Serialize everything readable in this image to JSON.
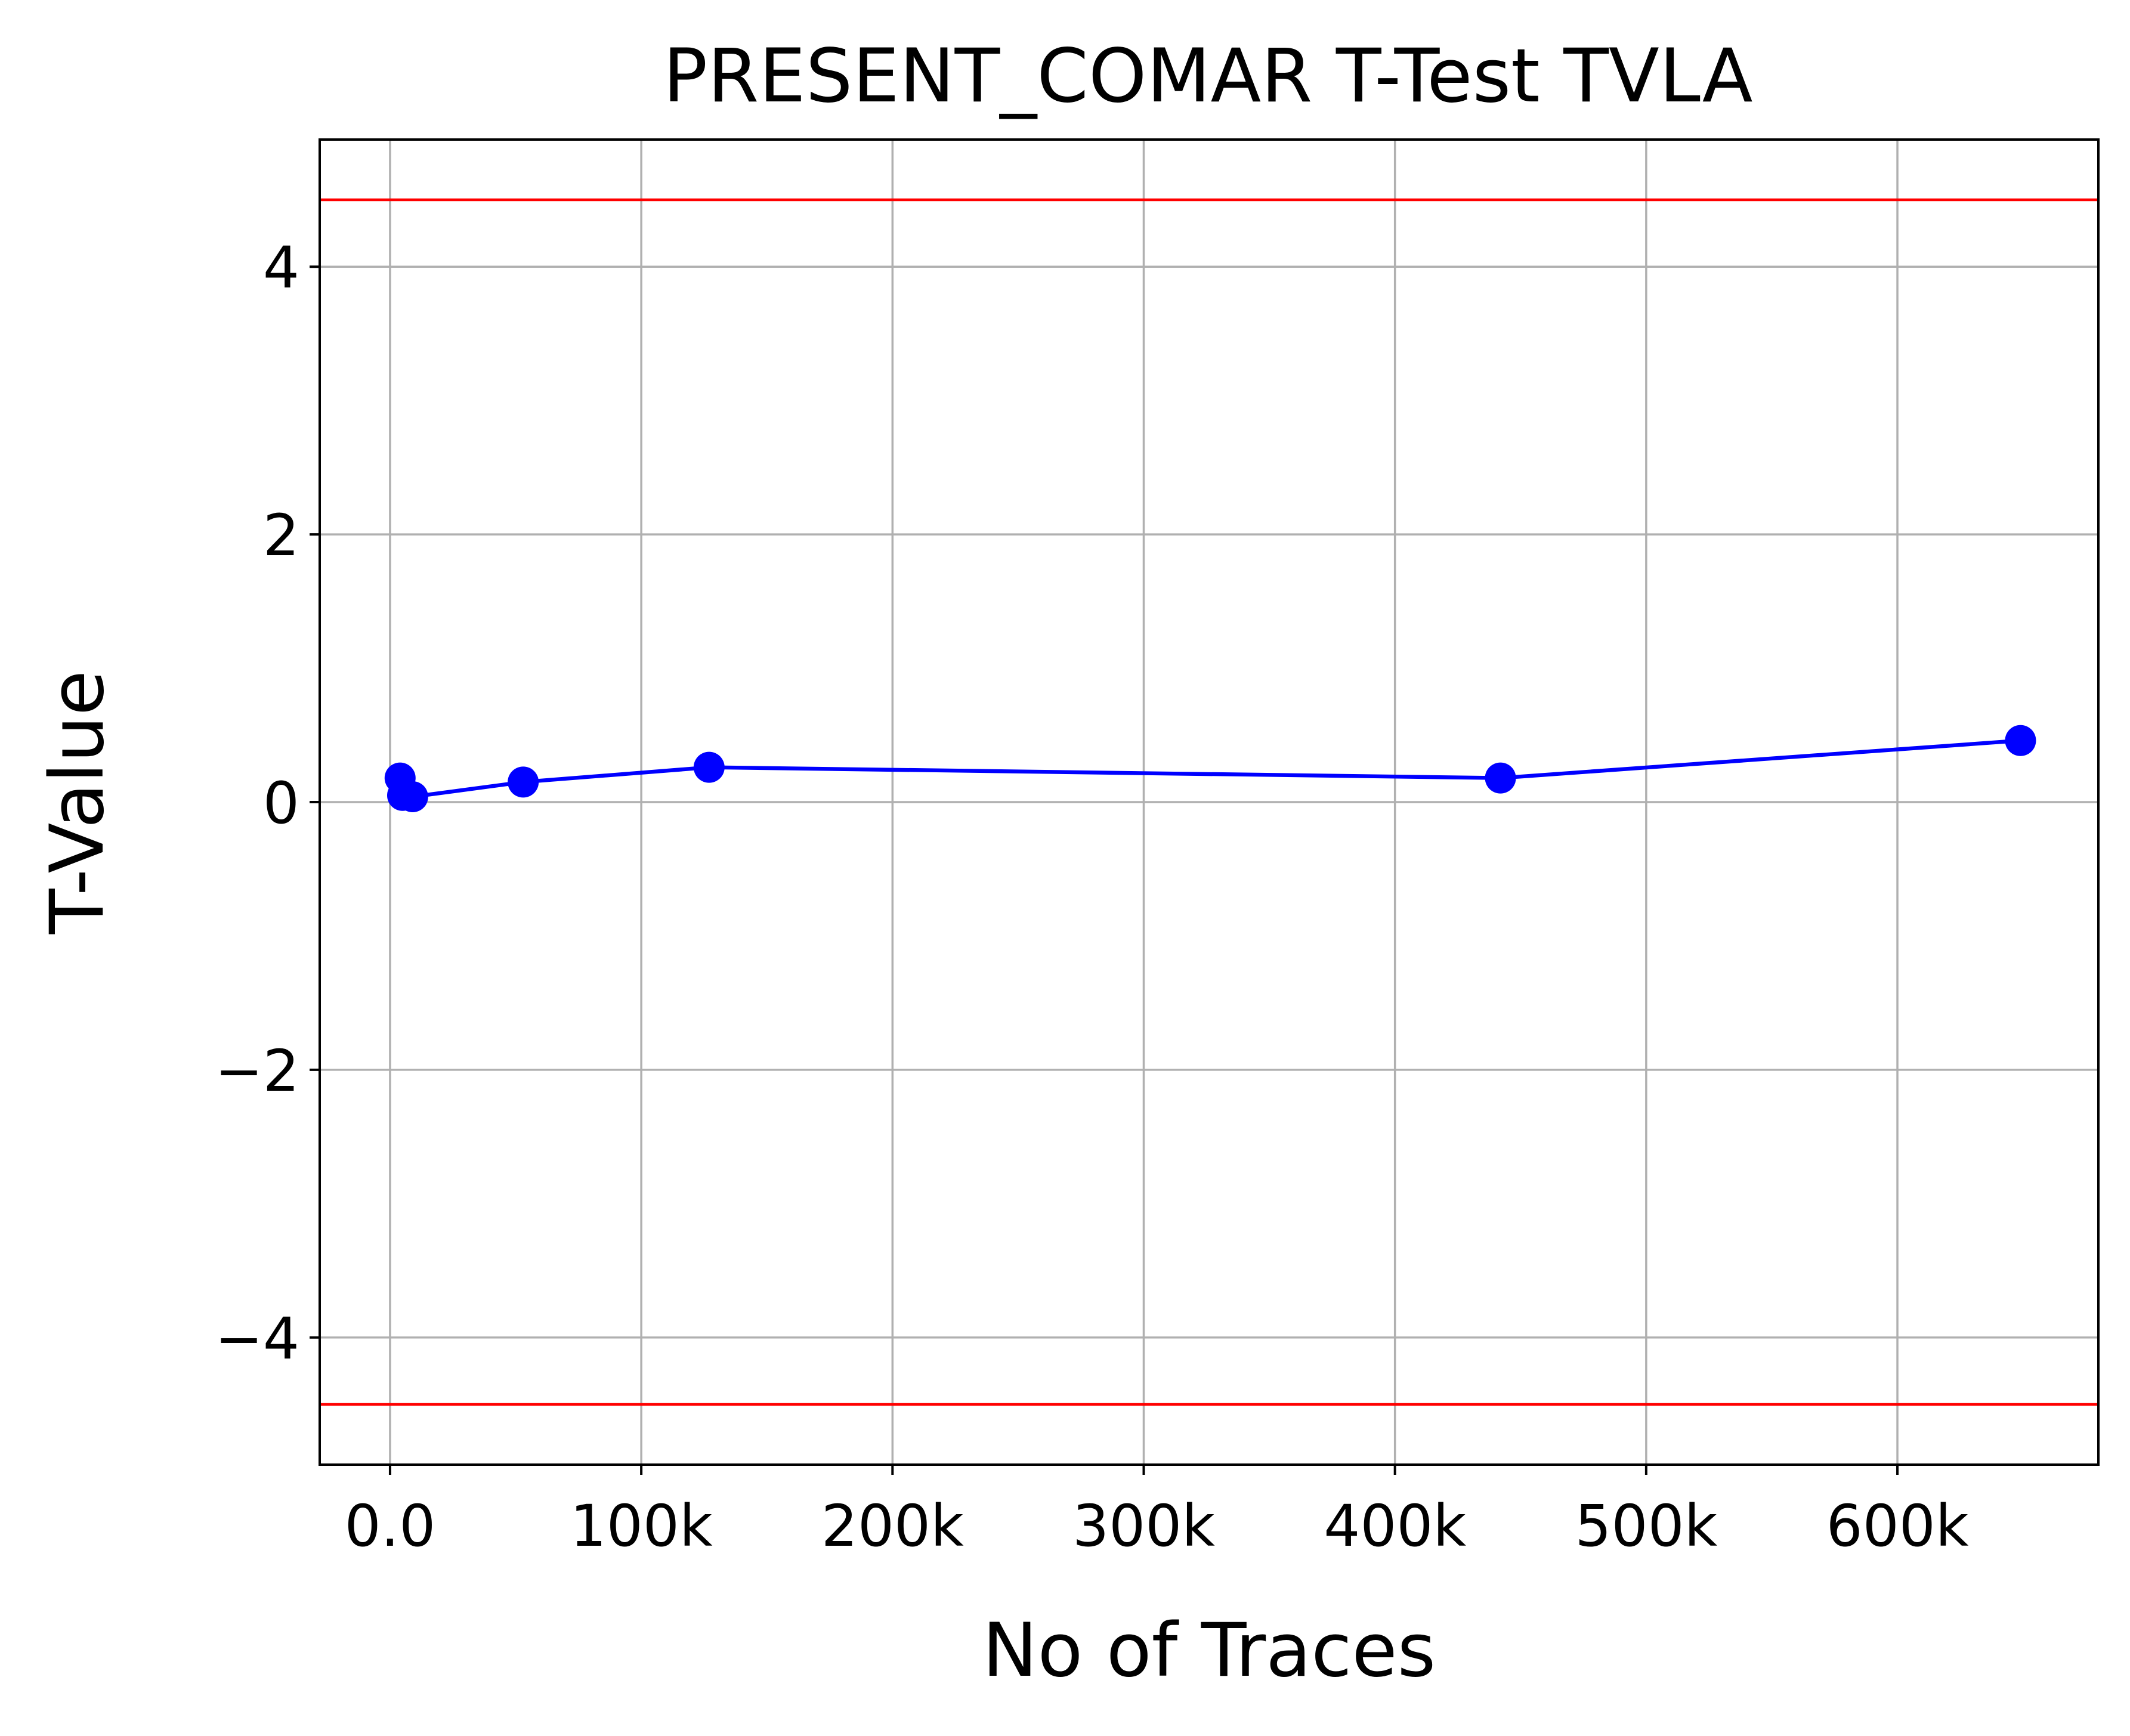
{
  "chart_data": {
    "type": "line",
    "title": "PRESENT_COMAR T-Test TVLA",
    "xlabel": "No of Traces",
    "ylabel": "T-Value",
    "xlim": [
      -28000,
      680000
    ],
    "ylim": [
      -4.95,
      4.95
    ],
    "x_ticks": [
      {
        "value": 0,
        "label": "0.0"
      },
      {
        "value": 100000,
        "label": "100k"
      },
      {
        "value": 200000,
        "label": "200k"
      },
      {
        "value": 300000,
        "label": "300k"
      },
      {
        "value": 400000,
        "label": "400k"
      },
      {
        "value": 500000,
        "label": "500k"
      },
      {
        "value": 600000,
        "label": "600k"
      }
    ],
    "y_ticks": [
      {
        "value": -4,
        "label": "−4"
      },
      {
        "value": -2,
        "label": "−2"
      },
      {
        "value": 0,
        "label": "0"
      },
      {
        "value": 2,
        "label": "2"
      },
      {
        "value": 4,
        "label": "4"
      }
    ],
    "grid": true,
    "series": [
      {
        "color": "#0000ff",
        "marker": "circle",
        "points": [
          {
            "x": 4000,
            "y": 0.18
          },
          {
            "x": 5000,
            "y": 0.05
          },
          {
            "x": 9000,
            "y": 0.04
          },
          {
            "x": 53000,
            "y": 0.15
          },
          {
            "x": 127000,
            "y": 0.26
          },
          {
            "x": 442000,
            "y": 0.18
          },
          {
            "x": 649000,
            "y": 0.46
          }
        ]
      }
    ],
    "threshold_lines": [
      {
        "y": 4.5,
        "color": "#ff0000"
      },
      {
        "y": -4.5,
        "color": "#ff0000"
      }
    ],
    "colors": {
      "grid": "#b0b0b0",
      "axes": "#000000"
    }
  }
}
